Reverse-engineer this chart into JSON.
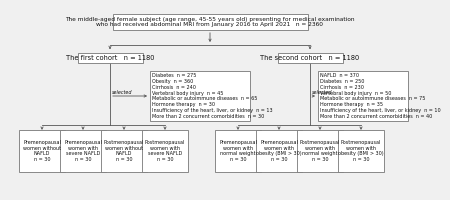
{
  "title_text": "The middle-aged female subject (age range, 45-55 years old) presenting for medical examination\nwho had received abdominal MRI from January 2016 to April 2021   n = 2360",
  "cohort1_text": "The first cohort   n = 1180",
  "cohort2_text": "The second cohort   n = 1180",
  "exclusion1_lines": "Diabetes  n = 275\nObesity  n = 360\nCirrhosis  n = 240\nVertebral body injury  n = 45\nMetabolic or autoimmune diseases  n = 65\nHormone therapy  n = 30\nInsufficiency of the heart, liver, or kidney  n = 13\nMore than 2 concurrent comorbidities  n = 30",
  "exclusion2_lines": "NAFLD  n = 370\nDiabetes  n = 250\nCirrhosis  n = 230\nVertebral body injury  n = 50\nMetabolic or autoimmune diseases  n = 75\nHormone therapy  n = 35\nInsufficiency of the heart, liver, or kidney  n = 10\nMore than 2 concurrent comorbidities  n = 40",
  "selected_text": "selected",
  "leaf1_boxes": [
    "Premenopausal\nwomen without\nNAFLD\nn = 30",
    "Premenopausal\nwomen with\nsevere NAFLD\nn = 30",
    "Postmenopausal\nwomen without\nNAFLD\nn = 30",
    "Postmenopausal\nwomen with\nsevere NAFLD\nn = 30"
  ],
  "leaf2_boxes": [
    "Premenopausal\nwomen with\nnormal weight\nn = 30",
    "Premenopausal\nwomen with\nobesity (BMI > 30)\nn = 30",
    "Postmenopausal\nwomen with\nnormal weight\nn = 30",
    "Postmenopausal\nwomen with\nobesity (BMI > 30)\nn = 30"
  ],
  "bg_color": "#f0f0f0",
  "box_facecolor": "white",
  "box_edgecolor": "#777777",
  "text_color": "#111111",
  "line_color": "#555555",
  "fontsize_title": 4.2,
  "fontsize_cohort": 4.8,
  "fontsize_excl": 3.5,
  "fontsize_leaf": 3.5,
  "fontsize_selected": 3.5
}
